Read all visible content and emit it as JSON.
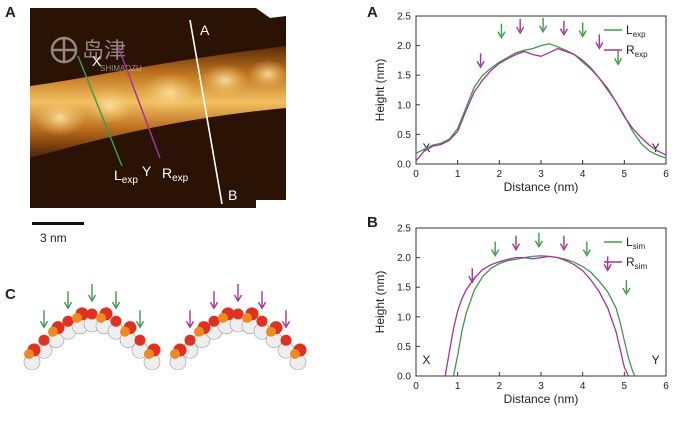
{
  "figure": {
    "panel_a_letter": "A",
    "panel_c_letter": "C",
    "chart_a_letter": "A",
    "chart_b_letter": "B",
    "afm_labels": {
      "line_a": "A",
      "line_b": "B",
      "point_x": "X",
      "point_y": "Y",
      "l_exp_main": "L",
      "l_exp_sub": "exp",
      "r_exp_main": "R",
      "r_exp_sub": "exp"
    },
    "scale_bar_label": "3 nm",
    "watermark_cn": "岛津",
    "watermark_en": "SHIMADZU",
    "colors": {
      "green": "#3f9a4a",
      "magenta": "#a8329a",
      "afm_dark": "#2a1204",
      "afm_bright": "#f3c060",
      "oxygen": "#e03020",
      "phosphorus": "#f08a20",
      "carbon": "#eeeeee"
    }
  },
  "chart_data": [
    {
      "type": "line",
      "panel": "A",
      "xlabel": "Distance (nm)",
      "ylabel": "Height (nm)",
      "xlim": [
        0,
        6
      ],
      "ylim": [
        0,
        2.5
      ],
      "xticks": [
        "0",
        "1",
        "2",
        "3",
        "4",
        "5",
        "6"
      ],
      "yticks": [
        "0.0",
        "0.5",
        "1.0",
        "1.5",
        "2.0",
        "2.5"
      ],
      "x_annotation_left": "X",
      "x_annotation_right": "Y",
      "legend": [
        {
          "main": "L",
          "sub": "exp",
          "color": "#3f9a4a"
        },
        {
          "main": "R",
          "sub": "exp",
          "color": "#a8329a"
        }
      ],
      "arrows": [
        {
          "x": 1.55,
          "y": 1.6,
          "color": "magenta"
        },
        {
          "x": 2.05,
          "y": 2.1,
          "color": "green"
        },
        {
          "x": 2.5,
          "y": 2.18,
          "color": "magenta"
        },
        {
          "x": 3.05,
          "y": 2.2,
          "color": "green"
        },
        {
          "x": 3.55,
          "y": 2.15,
          "color": "magenta"
        },
        {
          "x": 4.0,
          "y": 2.12,
          "color": "green"
        },
        {
          "x": 4.4,
          "y": 1.92,
          "color": "magenta"
        },
        {
          "x": 4.85,
          "y": 1.65,
          "color": "green"
        }
      ],
      "series": [
        {
          "name": "Lexp",
          "color": "#3f9a4a",
          "x": [
            0,
            0.2,
            0.4,
            0.6,
            0.8,
            1.0,
            1.2,
            1.4,
            1.6,
            1.8,
            2.0,
            2.2,
            2.4,
            2.6,
            2.8,
            3.0,
            3.2,
            3.4,
            3.6,
            3.8,
            4.0,
            4.2,
            4.4,
            4.6,
            4.8,
            5.0,
            5.2,
            5.4,
            5.6,
            5.8,
            6.0
          ],
          "y": [
            0.18,
            0.25,
            0.32,
            0.35,
            0.42,
            0.6,
            0.95,
            1.3,
            1.5,
            1.62,
            1.72,
            1.8,
            1.88,
            1.92,
            1.95,
            2.0,
            2.03,
            1.98,
            1.92,
            1.85,
            1.72,
            1.6,
            1.45,
            1.28,
            1.05,
            0.82,
            0.55,
            0.35,
            0.22,
            0.15,
            0.1
          ]
        },
        {
          "name": "Rexp",
          "color": "#a8329a",
          "x": [
            0,
            0.2,
            0.4,
            0.6,
            0.8,
            1.0,
            1.2,
            1.4,
            1.6,
            1.8,
            2.0,
            2.2,
            2.4,
            2.6,
            2.8,
            3.0,
            3.2,
            3.4,
            3.6,
            3.8,
            4.0,
            4.2,
            4.4,
            4.6,
            4.8,
            5.0,
            5.2,
            5.4,
            5.6,
            5.8,
            6.0
          ],
          "y": [
            0.05,
            0.22,
            0.3,
            0.33,
            0.4,
            0.55,
            0.9,
            1.22,
            1.42,
            1.58,
            1.7,
            1.78,
            1.85,
            1.9,
            1.85,
            1.82,
            1.88,
            1.95,
            1.9,
            1.85,
            1.75,
            1.62,
            1.45,
            1.25,
            1.05,
            0.8,
            0.6,
            0.45,
            0.32,
            0.22,
            0.15
          ]
        }
      ]
    },
    {
      "type": "line",
      "panel": "B",
      "xlabel": "Distance (nm)",
      "ylabel": "Height (nm)",
      "xlim": [
        0,
        6
      ],
      "ylim": [
        0,
        2.5
      ],
      "xticks": [
        "0",
        "1",
        "2",
        "3",
        "4",
        "5",
        "6"
      ],
      "yticks": [
        "0.0",
        "0.5",
        "1.0",
        "1.5",
        "2.0",
        "2.5"
      ],
      "x_annotation_left": "X",
      "x_annotation_right": "Y",
      "legend": [
        {
          "main": "L",
          "sub": "sim",
          "color": "#3f9a4a"
        },
        {
          "main": "R",
          "sub": "sim",
          "color": "#a8329a"
        }
      ],
      "arrows": [
        {
          "x": 1.35,
          "y": 1.55,
          "color": "magenta"
        },
        {
          "x": 1.9,
          "y": 2.0,
          "color": "green"
        },
        {
          "x": 2.4,
          "y": 2.1,
          "color": "magenta"
        },
        {
          "x": 2.95,
          "y": 2.15,
          "color": "green"
        },
        {
          "x": 3.55,
          "y": 2.1,
          "color": "magenta"
        },
        {
          "x": 4.1,
          "y": 2.0,
          "color": "green"
        },
        {
          "x": 4.6,
          "y": 1.75,
          "color": "magenta"
        },
        {
          "x": 5.05,
          "y": 1.35,
          "color": "green"
        }
      ],
      "series": [
        {
          "name": "Lsim",
          "color": "#3f9a4a",
          "x": [
            0.9,
            1.0,
            1.1,
            1.2,
            1.3,
            1.4,
            1.6,
            1.8,
            2.0,
            2.2,
            2.4,
            2.6,
            2.8,
            3.0,
            3.2,
            3.4,
            3.6,
            3.8,
            4.0,
            4.2,
            4.4,
            4.6,
            4.8,
            4.9,
            5.0,
            5.1,
            5.2,
            5.25
          ],
          "y": [
            0.0,
            0.35,
            0.75,
            1.05,
            1.25,
            1.45,
            1.68,
            1.82,
            1.9,
            1.95,
            1.97,
            2.0,
            2.02,
            2.03,
            2.02,
            2.0,
            1.97,
            1.92,
            1.85,
            1.75,
            1.6,
            1.42,
            1.15,
            0.9,
            0.6,
            0.3,
            0.08,
            0.0
          ]
        },
        {
          "name": "Rsim",
          "color": "#a8329a",
          "x": [
            0.7,
            0.8,
            0.9,
            1.0,
            1.1,
            1.2,
            1.4,
            1.6,
            1.8,
            2.0,
            2.2,
            2.4,
            2.6,
            2.8,
            3.0,
            3.2,
            3.4,
            3.6,
            3.8,
            4.0,
            4.2,
            4.4,
            4.6,
            4.8,
            4.9,
            5.0,
            5.1
          ],
          "y": [
            0.0,
            0.4,
            0.8,
            1.1,
            1.3,
            1.45,
            1.65,
            1.8,
            1.88,
            1.93,
            1.97,
            2.0,
            2.0,
            1.98,
            2.0,
            2.02,
            2.0,
            1.95,
            1.88,
            1.78,
            1.62,
            1.42,
            1.15,
            0.75,
            0.45,
            0.15,
            0.0
          ]
        }
      ]
    }
  ]
}
